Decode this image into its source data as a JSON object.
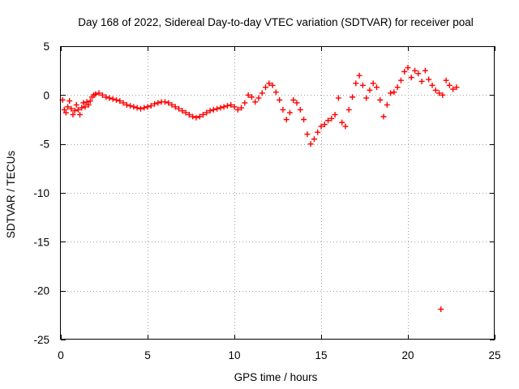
{
  "chart_data": {
    "type": "scatter",
    "title": "Day 168 of 2022, Sidereal Day-to-day VTEC variation (SDTVAR) for receiver poal",
    "xlabel": "GPS time / hours",
    "ylabel": "SDTVAR / TECUs",
    "xlim": [
      0,
      25
    ],
    "ylim": [
      -25,
      5
    ],
    "x_ticks": [
      "0",
      "5",
      "10",
      "15",
      "20",
      "25"
    ],
    "y_ticks": [
      "5",
      "0",
      "-5",
      "-10",
      "-15",
      "-20",
      "-25"
    ],
    "grid": true,
    "marker": "plus",
    "color": "#ff0000",
    "series": [
      {
        "name": "SDTVAR",
        "x": [
          0.1,
          0.2,
          0.3,
          0.4,
          0.5,
          0.6,
          0.7,
          0.8,
          0.9,
          1.0,
          1.1,
          1.2,
          1.3,
          1.4,
          1.5,
          1.6,
          1.7,
          1.8,
          1.9,
          2.0,
          2.2,
          2.4,
          2.6,
          2.8,
          3.0,
          3.2,
          3.4,
          3.6,
          3.8,
          4.0,
          4.2,
          4.4,
          4.6,
          4.8,
          5.0,
          5.2,
          5.4,
          5.6,
          5.8,
          6.0,
          6.2,
          6.4,
          6.6,
          6.8,
          7.0,
          7.2,
          7.4,
          7.6,
          7.8,
          8.0,
          8.2,
          8.4,
          8.6,
          8.8,
          9.0,
          9.2,
          9.4,
          9.6,
          9.8,
          10.0,
          10.2,
          10.4,
          10.6,
          10.8,
          11.0,
          11.2,
          11.4,
          11.6,
          11.8,
          12.0,
          12.2,
          12.4,
          12.6,
          12.8,
          13.0,
          13.2,
          13.4,
          13.6,
          13.8,
          14.0,
          14.2,
          14.4,
          14.6,
          14.8,
          15.0,
          15.2,
          15.4,
          15.6,
          15.8,
          16.0,
          16.2,
          16.4,
          16.6,
          16.8,
          17.0,
          17.2,
          17.4,
          17.6,
          17.8,
          18.0,
          18.2,
          18.4,
          18.6,
          18.8,
          19.0,
          19.2,
          19.4,
          19.6,
          19.8,
          20.0,
          20.2,
          20.4,
          20.6,
          20.8,
          21.0,
          21.2,
          21.4,
          21.6,
          21.8,
          22.0,
          22.2,
          22.4,
          22.6,
          22.8,
          21.9
        ],
        "values": [
          -0.5,
          -1.5,
          -1.8,
          -1.2,
          -0.6,
          -1.4,
          -2.0,
          -1.6,
          -1.0,
          -1.5,
          -2.0,
          -1.3,
          -0.8,
          -1.2,
          -0.7,
          -1.0,
          -0.6,
          -0.2,
          0.0,
          0.1,
          0.2,
          0.0,
          -0.2,
          -0.3,
          -0.4,
          -0.5,
          -0.6,
          -0.8,
          -1.0,
          -1.1,
          -1.2,
          -1.3,
          -1.4,
          -1.3,
          -1.2,
          -1.1,
          -0.9,
          -0.8,
          -0.7,
          -0.7,
          -0.8,
          -1.0,
          -1.2,
          -1.4,
          -1.6,
          -1.8,
          -2.0,
          -2.2,
          -2.3,
          -2.2,
          -2.0,
          -1.8,
          -1.6,
          -1.5,
          -1.4,
          -1.3,
          -1.2,
          -1.1,
          -1.0,
          -1.2,
          -1.5,
          -1.3,
          -0.8,
          0.0,
          -0.2,
          -0.7,
          -0.3,
          0.2,
          0.8,
          1.2,
          1.0,
          0.3,
          -0.5,
          -1.5,
          -2.5,
          -1.8,
          -0.5,
          -0.8,
          -1.5,
          -2.5,
          -4.0,
          -5.0,
          -4.5,
          -3.8,
          -3.2,
          -3.0,
          -2.6,
          -2.4,
          -2.0,
          -0.3,
          -2.8,
          -3.2,
          -1.5,
          -0.2,
          1.2,
          2.0,
          1.0,
          -0.3,
          0.5,
          1.2,
          0.8,
          -0.5,
          -2.2,
          -1.0,
          0.2,
          0.3,
          0.8,
          1.5,
          2.4,
          2.8,
          1.8,
          2.5,
          2.2,
          1.4,
          2.5,
          1.6,
          1.0,
          0.5,
          0.2,
          0.0,
          1.5,
          1.0,
          0.6,
          0.8,
          -21.9
        ]
      }
    ]
  }
}
